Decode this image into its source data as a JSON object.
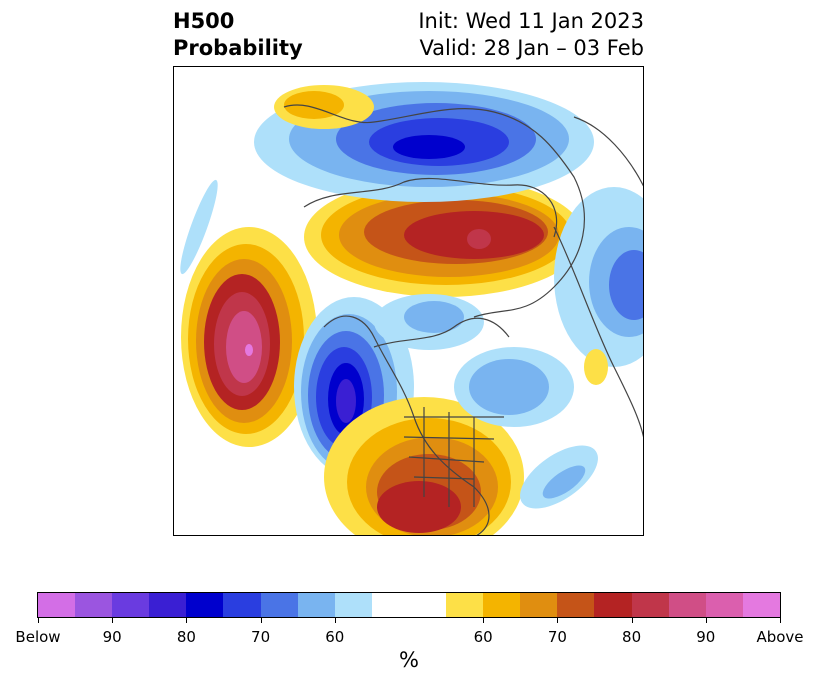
{
  "header": {
    "title_line1": "H500",
    "title_line2": "Probability",
    "init_text": "Init: Wed 11 Jan 2023",
    "valid_text": "Valid: 28 Jan – 03 Feb"
  },
  "colorbar": {
    "unit": "%",
    "segments": [
      "#d36ee6",
      "#9b55e0",
      "#6a3be0",
      "#3a1fd3",
      "#0000cd",
      "#2a3ee0",
      "#4a74e6",
      "#79b4f0",
      "#aee0fa",
      "#ffffff",
      "#fde047",
      "#f4b400",
      "#e08e10",
      "#c55418",
      "#b42323",
      "#c0364a",
      "#d04e86",
      "#db5fae",
      "#e479e0"
    ],
    "tick_labels": [
      "Below",
      "90",
      "80",
      "70",
      "60",
      "60",
      "70",
      "80",
      "90",
      "Above"
    ]
  },
  "map": {
    "description_regions": [
      "below-normal",
      "above-normal"
    ]
  }
}
